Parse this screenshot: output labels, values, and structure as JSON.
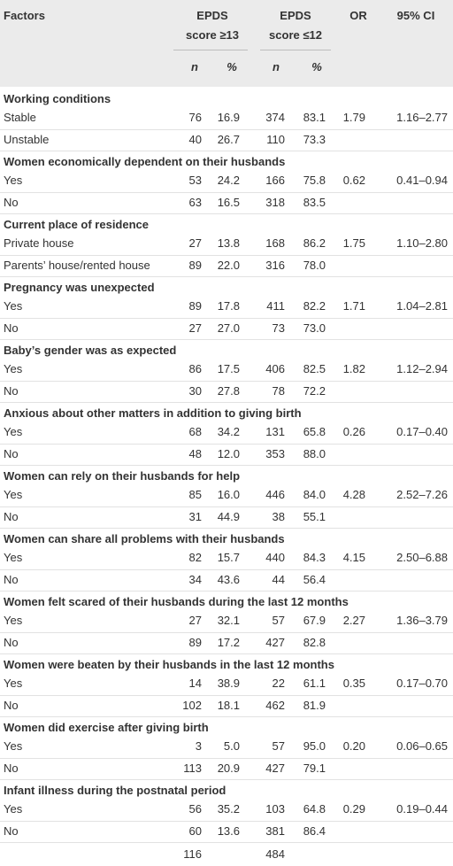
{
  "table": {
    "header": {
      "factors": "Factors",
      "group1_line1": "EPDS",
      "group1_line2": "score ≥13",
      "group2_line1": "EPDS",
      "group2_line2": "score ≤12",
      "or": "OR",
      "ci": "95% CI",
      "sub": [
        "n",
        "%",
        "n",
        "%"
      ]
    },
    "sections": [
      {
        "title": "Working conditions",
        "rows": [
          [
            "Stable",
            "76",
            "16.9",
            "374",
            "83.1",
            "1.79",
            "1.16–2.77"
          ],
          [
            "Unstable",
            "40",
            "26.7",
            "110",
            "73.3"
          ]
        ]
      },
      {
        "title": "Women economically dependent on their husbands",
        "rows": [
          [
            "Yes",
            "53",
            "24.2",
            "166",
            "75.8",
            "0.62",
            "0.41–0.94"
          ],
          [
            "No",
            "63",
            "16.5",
            "318",
            "83.5"
          ]
        ]
      },
      {
        "title": "Current place of residence",
        "rows": [
          [
            "Private house",
            "27",
            "13.8",
            "168",
            "86.2",
            "1.75",
            "1.10–2.80"
          ],
          [
            "Parents’ house/rented house",
            "89",
            "22.0",
            "316",
            "78.0"
          ]
        ]
      },
      {
        "title": "Pregnancy was unexpected",
        "rows": [
          [
            "Yes",
            "89",
            "17.8",
            "411",
            "82.2",
            "1.71",
            "1.04–2.81"
          ],
          [
            "No",
            "27",
            "27.0",
            "73",
            "73.0"
          ]
        ]
      },
      {
        "title": "Baby’s gender was as expected",
        "rows": [
          [
            "Yes",
            "86",
            "17.5",
            "406",
            "82.5",
            "1.82",
            "1.12–2.94"
          ],
          [
            "No",
            "30",
            "27.8",
            "78",
            "72.2"
          ]
        ]
      },
      {
        "title": "Anxious about other matters in addition to giving birth",
        "rows": [
          [
            "Yes",
            "68",
            "34.2",
            "131",
            "65.8",
            "0.26",
            "0.17–0.40"
          ],
          [
            "No",
            "48",
            "12.0",
            "353",
            "88.0"
          ]
        ]
      },
      {
        "title": "Women can rely on their husbands for help",
        "rows": [
          [
            "Yes",
            "85",
            "16.0",
            "446",
            "84.0",
            "4.28",
            "2.52–7.26"
          ],
          [
            "No",
            "31",
            "44.9",
            "38",
            "55.1"
          ]
        ]
      },
      {
        "title": "Women can share all problems with their husbands",
        "rows": [
          [
            "Yes",
            "82",
            "15.7",
            "440",
            "84.3",
            "4.15",
            "2.50–6.88"
          ],
          [
            "No",
            "34",
            "43.6",
            "44",
            "56.4"
          ]
        ]
      },
      {
        "title": "Women felt scared of their husbands during the last 12 months",
        "rows": [
          [
            "Yes",
            "27",
            "32.1",
            "57",
            "67.9",
            "2.27",
            "1.36–3.79"
          ],
          [
            "No",
            "89",
            "17.2",
            "427",
            "82.8"
          ]
        ]
      },
      {
        "title": "Women were beaten by their husbands in the last 12 months",
        "rows": [
          [
            "Yes",
            "14",
            "38.9",
            "22",
            "61.1",
            "0.35",
            "0.17–0.70"
          ],
          [
            "No",
            "102",
            "18.1",
            "462",
            "81.9"
          ]
        ]
      },
      {
        "title": "Women did exercise after giving birth",
        "rows": [
          [
            "Yes",
            "3",
            "5.0",
            "57",
            "95.0",
            "0.20",
            "0.06–0.65"
          ],
          [
            "No",
            "113",
            "20.9",
            "427",
            "79.1"
          ]
        ]
      },
      {
        "title": "Infant illness during the postnatal period",
        "rows": [
          [
            "Yes",
            "56",
            "35.2",
            "103",
            "64.8",
            "0.29",
            "0.19–0.44"
          ],
          [
            "No",
            "60",
            "13.6",
            "381",
            "86.4"
          ]
        ]
      }
    ],
    "total": [
      "116",
      "484"
    ]
  }
}
